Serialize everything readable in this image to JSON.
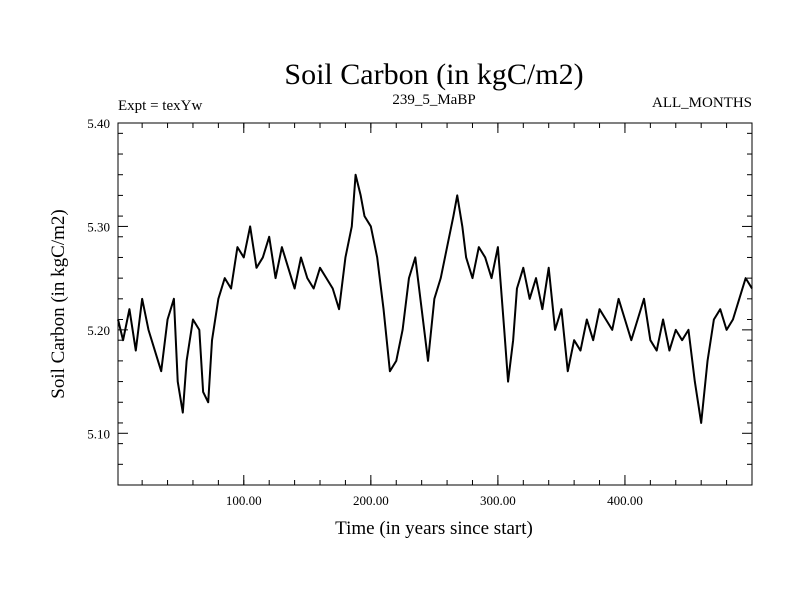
{
  "chart_data": {
    "type": "line",
    "title": "Soil Carbon (in kgC/m2)",
    "subtitle_left": "Expt = texYw",
    "subtitle_center": "239_5_MaBP",
    "subtitle_right": "ALL_MONTHS",
    "xlabel": "Time (in years since start)",
    "ylabel": "Soil Carbon (in kgC/m2)",
    "xlim": [
      1,
      500
    ],
    "ylim": [
      5.05,
      5.4
    ],
    "x_ticks": [
      {
        "value": 100,
        "label": "100.00"
      },
      {
        "value": 200,
        "label": "200.00"
      },
      {
        "value": 300,
        "label": "300.00"
      },
      {
        "value": 400,
        "label": "400.00"
      }
    ],
    "y_ticks": [
      {
        "value": 5.1,
        "label": "5.10"
      },
      {
        "value": 5.2,
        "label": "5.20"
      },
      {
        "value": 5.3,
        "label": "5.30"
      },
      {
        "value": 5.4,
        "label": "5.40"
      }
    ],
    "grid": false,
    "series": [
      {
        "color": "#000000",
        "x": [
          1,
          5,
          10,
          15,
          20,
          25,
          30,
          35,
          40,
          45,
          48,
          52,
          55,
          60,
          65,
          68,
          72,
          75,
          80,
          85,
          90,
          95,
          100,
          105,
          110,
          115,
          120,
          125,
          130,
          135,
          140,
          145,
          150,
          155,
          160,
          165,
          170,
          175,
          180,
          185,
          188,
          192,
          195,
          200,
          205,
          210,
          215,
          220,
          225,
          230,
          235,
          240,
          245,
          250,
          255,
          260,
          265,
          268,
          272,
          275,
          280,
          285,
          290,
          295,
          300,
          305,
          308,
          312,
          315,
          320,
          325,
          330,
          335,
          340,
          345,
          350,
          355,
          360,
          365,
          370,
          375,
          380,
          385,
          390,
          395,
          400,
          405,
          410,
          415,
          420,
          425,
          430,
          435,
          440,
          445,
          450,
          455,
          460,
          465,
          470,
          475,
          480,
          485,
          490,
          495,
          500
        ],
        "values": [
          5.21,
          5.19,
          5.22,
          5.18,
          5.23,
          5.2,
          5.18,
          5.16,
          5.21,
          5.23,
          5.15,
          5.12,
          5.17,
          5.21,
          5.2,
          5.14,
          5.13,
          5.19,
          5.23,
          5.25,
          5.24,
          5.28,
          5.27,
          5.3,
          5.26,
          5.27,
          5.29,
          5.25,
          5.28,
          5.26,
          5.24,
          5.27,
          5.25,
          5.24,
          5.26,
          5.25,
          5.24,
          5.22,
          5.27,
          5.3,
          5.35,
          5.33,
          5.31,
          5.3,
          5.27,
          5.22,
          5.16,
          5.17,
          5.2,
          5.25,
          5.27,
          5.22,
          5.17,
          5.23,
          5.25,
          5.28,
          5.31,
          5.33,
          5.3,
          5.27,
          5.25,
          5.28,
          5.27,
          5.25,
          5.28,
          5.2,
          5.15,
          5.19,
          5.24,
          5.26,
          5.23,
          5.25,
          5.22,
          5.26,
          5.2,
          5.22,
          5.16,
          5.19,
          5.18,
          5.21,
          5.19,
          5.22,
          5.21,
          5.2,
          5.23,
          5.21,
          5.19,
          5.21,
          5.23,
          5.19,
          5.18,
          5.21,
          5.18,
          5.2,
          5.19,
          5.2,
          5.15,
          5.11,
          5.17,
          5.21,
          5.22,
          5.2,
          5.21,
          5.23,
          5.25,
          5.24
        ]
      }
    ]
  }
}
